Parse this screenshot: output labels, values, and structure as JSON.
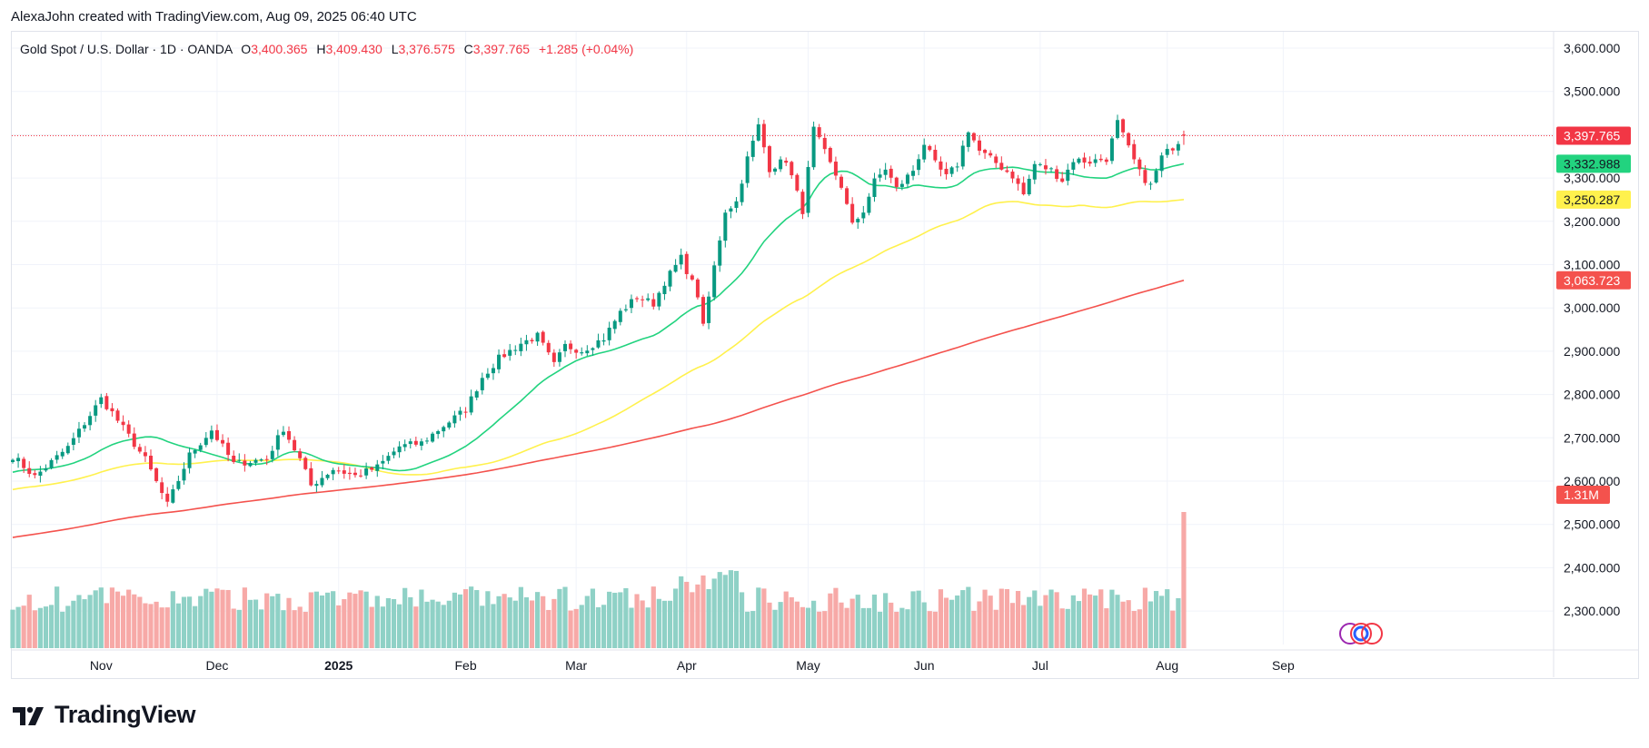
{
  "header": {
    "attribution": "AlexaJohn created with TradingView.com, Aug 09, 2025 06:40 UTC"
  },
  "legend": {
    "symbol": "Gold Spot / U.S. Dollar · 1D · OANDA",
    "o_label": "O",
    "o_value": "3,400.365",
    "h_label": "H",
    "h_value": "3,409.430",
    "l_label": "L",
    "l_value": "3,376.575",
    "c_label": "C",
    "c_value": "3,397.765",
    "change": "+1.285 (+0.04%)"
  },
  "brand": {
    "name": "TradingView"
  },
  "colors": {
    "up": "#089981",
    "down": "#f23645",
    "vol_up": "#8fd1c6",
    "vol_down": "#f7a9a7",
    "ma_short": "#22d37f",
    "ma_mid": "#fff14d",
    "ma_long": "#f4524d",
    "price_line": "#f23645"
  },
  "chart_data": {
    "type": "candlestick",
    "title": "Gold Spot / U.S. Dollar · 1D · OANDA",
    "y_ticks": [
      "3,600.000",
      "3,500.000",
      "3,400.000",
      "3,300.000",
      "3,200.000",
      "3,100.000",
      "3,000.000",
      "2,900.000",
      "2,800.000",
      "2,700.000",
      "2,600.000",
      "2,500.000",
      "2,400.000",
      "2,300.000"
    ],
    "y_tick_values": [
      3600,
      3500,
      3400,
      3300,
      3200,
      3100,
      3000,
      2900,
      2800,
      2700,
      2600,
      2500,
      2400,
      2300
    ],
    "ylim": [
      2250,
      3650
    ],
    "x_ticks": [
      {
        "label": "Nov",
        "day": 16
      },
      {
        "label": "Dec",
        "day": 37
      },
      {
        "label": "2025",
        "day": 59,
        "bold": true
      },
      {
        "label": "Feb",
        "day": 82
      },
      {
        "label": "Mar",
        "day": 102
      },
      {
        "label": "Apr",
        "day": 122
      },
      {
        "label": "May",
        "day": 144
      },
      {
        "label": "Jun",
        "day": 165
      },
      {
        "label": "Jul",
        "day": 186
      },
      {
        "label": "Aug",
        "day": 209
      },
      {
        "label": "Sep",
        "day": 230
      }
    ],
    "days_visible": 258,
    "anchors": [
      [
        0,
        2658
      ],
      [
        4,
        2610
      ],
      [
        10,
        2678
      ],
      [
        16,
        2790
      ],
      [
        18,
        2758
      ],
      [
        24,
        2650
      ],
      [
        28,
        2545
      ],
      [
        32,
        2660
      ],
      [
        36,
        2718
      ],
      [
        40,
        2640
      ],
      [
        46,
        2652
      ],
      [
        49,
        2722
      ],
      [
        52,
        2650
      ],
      [
        54,
        2590
      ],
      [
        58,
        2628
      ],
      [
        62,
        2612
      ],
      [
        66,
        2632
      ],
      [
        70,
        2680
      ],
      [
        74,
        2688
      ],
      [
        78,
        2728
      ],
      [
        82,
        2765
      ],
      [
        85,
        2840
      ],
      [
        88,
        2883
      ],
      [
        92,
        2918
      ],
      [
        95,
        2935
      ],
      [
        98,
        2868
      ],
      [
        100,
        2912
      ],
      [
        103,
        2902
      ],
      [
        107,
        2930
      ],
      [
        110,
        2990
      ],
      [
        113,
        3025
      ],
      [
        116,
        3010
      ],
      [
        118,
        3060
      ],
      [
        121,
        3115
      ],
      [
        124,
        3030
      ],
      [
        125,
        2955
      ],
      [
        127,
        3095
      ],
      [
        129,
        3225
      ],
      [
        131,
        3245
      ],
      [
        133,
        3345
      ],
      [
        135,
        3420
      ],
      [
        137,
        3322
      ],
      [
        140,
        3342
      ],
      [
        143,
        3225
      ],
      [
        145,
        3412
      ],
      [
        148,
        3332
      ],
      [
        150,
        3282
      ],
      [
        152,
        3190
      ],
      [
        154,
        3225
      ],
      [
        156,
        3292
      ],
      [
        158,
        3322
      ],
      [
        160,
        3275
      ],
      [
        163,
        3318
      ],
      [
        165,
        3380
      ],
      [
        167,
        3332
      ],
      [
        169,
        3302
      ],
      [
        171,
        3332
      ],
      [
        173,
        3412
      ],
      [
        175,
        3362
      ],
      [
        178,
        3335
      ],
      [
        181,
        3305
      ],
      [
        183,
        3262
      ],
      [
        185,
        3332
      ],
      [
        188,
        3318
      ],
      [
        190,
        3295
      ],
      [
        192,
        3342
      ],
      [
        195,
        3338
      ],
      [
        198,
        3345
      ],
      [
        200,
        3428
      ],
      [
        202,
        3368
      ],
      [
        204,
        3312
      ],
      [
        206,
        3282
      ],
      [
        208,
        3348
      ],
      [
        210,
        3372
      ],
      [
        212,
        3398
      ]
    ],
    "last_close": 3397.765,
    "ma_short_end": 3332.988,
    "ma_mid_end": 3250.287,
    "ma_long_end": 3063.723,
    "last_volume": "1.31M",
    "price_labels": [
      "3,397.765",
      "3,332.988",
      "3,250.287",
      "3,063.723",
      "1.31M"
    ],
    "series": [
      {
        "name": "Gold Spot / U.S. Dollar",
        "kind": "candles"
      },
      {
        "kind": "sma_short"
      },
      {
        "kind": "sma_mid"
      },
      {
        "kind": "sma_long"
      },
      {
        "kind": "volume"
      }
    ],
    "grid": true,
    "legend": "top-left"
  }
}
